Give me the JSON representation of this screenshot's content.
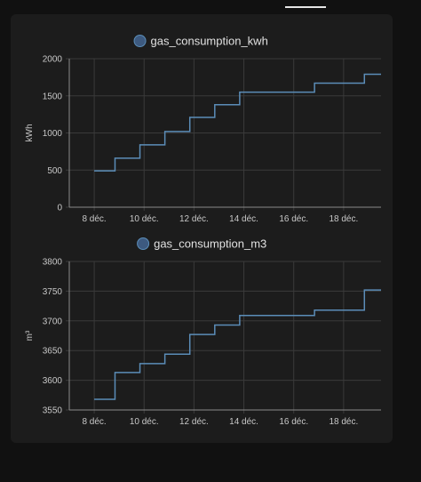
{
  "chart_data": [
    {
      "type": "line",
      "step": true,
      "legend": "gas_consumption_kwh",
      "ylabel": "kWh",
      "ylim": [
        0,
        2000
      ],
      "yticks": [
        0,
        500,
        1000,
        1500,
        2000
      ],
      "xlim": [
        "2023-12-07",
        "2023-12-19"
      ],
      "xticks": [
        {
          "date": "2023-12-08",
          "label": "8 déc."
        },
        {
          "date": "2023-12-10",
          "label": "10 déc."
        },
        {
          "date": "2023-12-12",
          "label": "12 déc."
        },
        {
          "date": "2023-12-14",
          "label": "14 déc."
        },
        {
          "date": "2023-12-16",
          "label": "16 déc."
        },
        {
          "date": "2023-12-18",
          "label": "18 déc."
        }
      ],
      "grid": true,
      "color": "#5b8db8",
      "points": [
        {
          "x": "2023-12-08 00:00",
          "y": 490
        },
        {
          "x": "2023-12-08 20:00",
          "y": 660
        },
        {
          "x": "2023-12-09 20:00",
          "y": 840
        },
        {
          "x": "2023-12-10 20:00",
          "y": 1020
        },
        {
          "x": "2023-12-11 20:00",
          "y": 1210
        },
        {
          "x": "2023-12-12 20:00",
          "y": 1380
        },
        {
          "x": "2023-12-13 20:00",
          "y": 1550
        },
        {
          "x": "2023-12-16 20:00",
          "y": 1670
        },
        {
          "x": "2023-12-18 20:00",
          "y": 1790
        },
        {
          "x": "2023-12-19 12:00",
          "y": 1790
        }
      ]
    },
    {
      "type": "line",
      "step": true,
      "legend": "gas_consumption_m3",
      "ylabel": "m³",
      "ylim": [
        3550,
        3800
      ],
      "yticks": [
        3550,
        3600,
        3650,
        3700,
        3750,
        3800
      ],
      "xlim": [
        "2023-12-07",
        "2023-12-19"
      ],
      "xticks": [
        {
          "date": "2023-12-08",
          "label": "8 déc."
        },
        {
          "date": "2023-12-10",
          "label": "10 déc."
        },
        {
          "date": "2023-12-12",
          "label": "12 déc."
        },
        {
          "date": "2023-12-14",
          "label": "14 déc."
        },
        {
          "date": "2023-12-16",
          "label": "16 déc."
        },
        {
          "date": "2023-12-18",
          "label": "18 déc."
        }
      ],
      "grid": true,
      "color": "#5b8db8",
      "points": [
        {
          "x": "2023-12-08 00:00",
          "y": 3568
        },
        {
          "x": "2023-12-08 20:00",
          "y": 3613
        },
        {
          "x": "2023-12-09 20:00",
          "y": 3628
        },
        {
          "x": "2023-12-10 20:00",
          "y": 3644
        },
        {
          "x": "2023-12-11 20:00",
          "y": 3677
        },
        {
          "x": "2023-12-12 20:00",
          "y": 3693
        },
        {
          "x": "2023-12-13 20:00",
          "y": 3709
        },
        {
          "x": "2023-12-16 20:00",
          "y": 3718
        },
        {
          "x": "2023-12-18 20:00",
          "y": 3752
        },
        {
          "x": "2023-12-19 12:00",
          "y": 3752
        }
      ]
    }
  ]
}
